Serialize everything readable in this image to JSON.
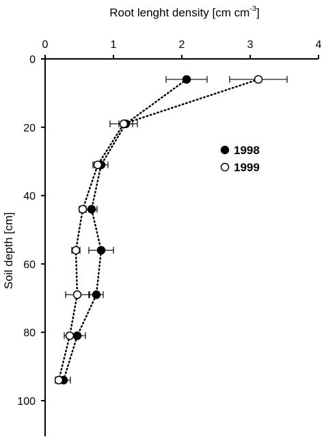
{
  "chart_data": {
    "type": "scatter",
    "xlabel": "Root lenght density  [cm cm",
    "xlabel_sup": "-3",
    "xlabel_end": "]",
    "ylabel": "Soil depth [cm]",
    "x_axis_position": "top",
    "xlim": [
      0,
      4
    ],
    "ylim": [
      0,
      110
    ],
    "y_inverted": true,
    "x_ticks": [
      0,
      1,
      2,
      3,
      4
    ],
    "y_ticks": [
      0,
      20,
      40,
      60,
      80,
      100
    ],
    "grid": false,
    "legend_position": "right",
    "series": [
      {
        "name": "1998",
        "marker": "filled-circle",
        "line": "dotted",
        "points": [
          {
            "x": 2.07,
            "y": 6,
            "err": 0.3
          },
          {
            "x": 1.18,
            "y": 19,
            "err": 0.1
          },
          {
            "x": 0.82,
            "y": 31,
            "err": 0.1
          },
          {
            "x": 0.68,
            "y": 44,
            "err": 0.08
          },
          {
            "x": 0.82,
            "y": 56,
            "err": 0.18
          },
          {
            "x": 0.75,
            "y": 69,
            "err": 0.1
          },
          {
            "x": 0.47,
            "y": 81,
            "err": 0.12
          },
          {
            "x": 0.27,
            "y": 94,
            "err": 0.1
          }
        ]
      },
      {
        "name": "1999",
        "marker": "open-circle",
        "line": "dotted",
        "points": [
          {
            "x": 3.12,
            "y": 6,
            "err": 0.42
          },
          {
            "x": 1.15,
            "y": 19,
            "err": 0.2
          },
          {
            "x": 0.77,
            "y": 31,
            "err": 0.07
          },
          {
            "x": 0.55,
            "y": 44,
            "err": 0.05
          },
          {
            "x": 0.45,
            "y": 56,
            "err": 0.06
          },
          {
            "x": 0.47,
            "y": 69,
            "err": 0.17
          },
          {
            "x": 0.36,
            "y": 81,
            "err": 0.08
          },
          {
            "x": 0.2,
            "y": 94,
            "err": 0.05
          }
        ]
      }
    ]
  }
}
